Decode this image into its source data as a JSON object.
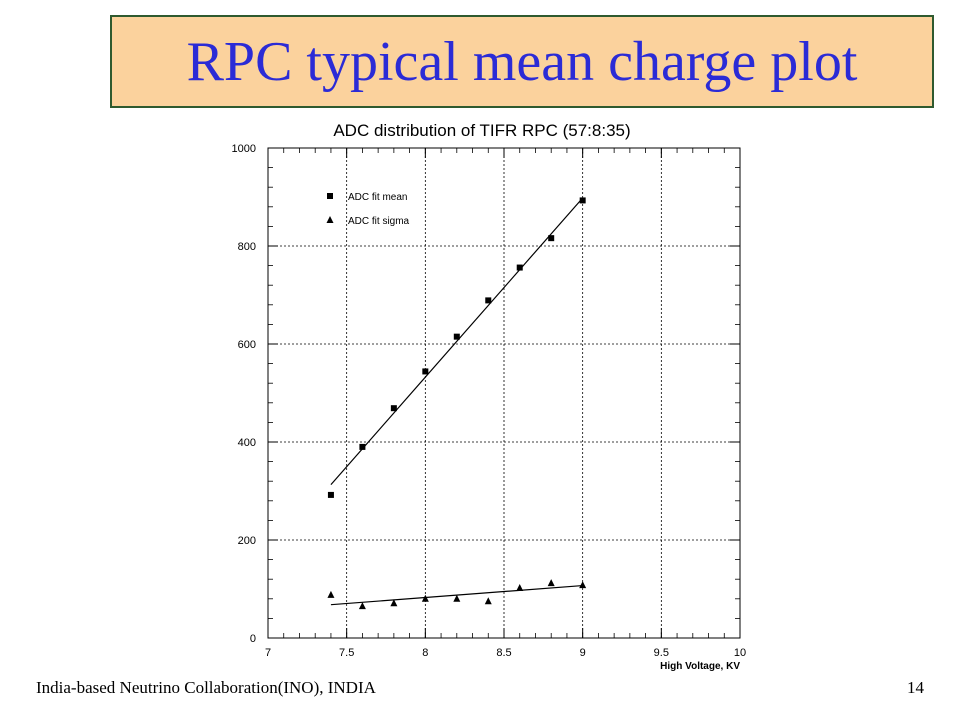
{
  "slide": {
    "title": "RPC typical mean charge plot",
    "footer_left": "India-based Neutrino Collaboration(INO), INDIA",
    "page_number": "14"
  },
  "chart_data": {
    "type": "scatter",
    "title": "ADC distribution of TIFR RPC (57:8:35)",
    "xlabel": "High Voltage, KV",
    "ylabel": "",
    "xlim": [
      7,
      10
    ],
    "ylim": [
      0,
      1000
    ],
    "x_ticks": [
      7,
      7.5,
      8,
      8.5,
      9,
      9.5,
      10
    ],
    "x_tick_labels": [
      "7",
      "7.5",
      "8",
      "8.5",
      "9",
      "9.5",
      "10"
    ],
    "y_ticks": [
      0,
      200,
      400,
      600,
      800,
      1000
    ],
    "y_tick_labels": [
      "0",
      "200",
      "400",
      "600",
      "800",
      "1000"
    ],
    "grid": true,
    "legend_position": "top-left",
    "series": [
      {
        "name": "ADC fit mean",
        "marker": "square",
        "x": [
          7.4,
          7.6,
          7.8,
          8.0,
          8.2,
          8.4,
          8.6,
          8.8,
          9.0
        ],
        "y": [
          292,
          390,
          469,
          544,
          615,
          689,
          756,
          816,
          893
        ],
        "fit": {
          "x": [
            7.4,
            9.0
          ],
          "y": [
            313,
            898
          ]
        }
      },
      {
        "name": "ADC fit sigma",
        "marker": "triangle",
        "x": [
          7.4,
          7.6,
          7.8,
          8.0,
          8.2,
          8.4,
          8.6,
          8.8,
          9.0
        ],
        "y": [
          88,
          65,
          71,
          80,
          80,
          75,
          102,
          112,
          108
        ],
        "fit": {
          "x": [
            7.4,
            9.0
          ],
          "y": [
            68,
            107
          ]
        }
      }
    ]
  }
}
